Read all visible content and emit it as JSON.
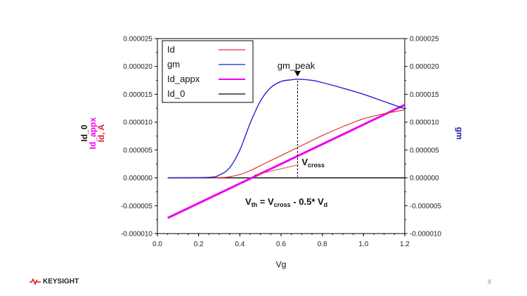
{
  "chart_data": {
    "type": "line",
    "xlabel": "Vg",
    "ylabel_left_lines": [
      {
        "text": "Id_0",
        "color": "#111111"
      },
      {
        "text": "Id_appx",
        "color": "#ee00ee"
      },
      {
        "text": "Id, A",
        "color": "#dd2222"
      }
    ],
    "ylabel_right": "gm",
    "ylabel_right_color": "#1a1aa8",
    "xlim": [
      0.0,
      1.2
    ],
    "ylim": [
      -1e-05,
      2.5e-05
    ],
    "y2lim": [
      -1e-05,
      2.5e-05
    ],
    "xticks": [
      0.0,
      0.2,
      0.4,
      0.6,
      0.8,
      1.0,
      1.2
    ],
    "xtick_labels": [
      "0.0",
      "0.2",
      "0.4",
      "0.6",
      "0.8",
      "1.0",
      "1.2"
    ],
    "yticks": [
      -1e-05,
      -5e-06,
      0.0,
      5e-06,
      1e-05,
      1.5e-05,
      2e-05,
      2.5e-05
    ],
    "ytick_labels": [
      "-0.000010",
      "-0.000005",
      "0.000000",
      "0.000005",
      "0.000010",
      "0.000015",
      "0.000020",
      "0.000025"
    ],
    "grid": false,
    "legend_position": "top-left",
    "series": [
      {
        "name": "Id",
        "color": "#dd3333",
        "axis": "left",
        "x": [
          0.05,
          0.3,
          0.35,
          0.4,
          0.45,
          0.5,
          0.55,
          0.6,
          0.7,
          0.8,
          0.9,
          1.0,
          1.1,
          1.2
        ],
        "y": [
          0.0,
          5e-08,
          2e-07,
          6e-07,
          1.3e-06,
          2.2e-06,
          3.1e-06,
          4e-06,
          5.8e-06,
          7.6e-06,
          9.2e-06,
          1.06e-05,
          1.15e-05,
          1.22e-05
        ]
      },
      {
        "name": "gm",
        "color": "#2222cc",
        "axis": "right",
        "x": [
          0.05,
          0.25,
          0.3,
          0.35,
          0.4,
          0.45,
          0.5,
          0.55,
          0.6,
          0.65,
          0.68,
          0.75,
          0.8,
          0.9,
          1.0,
          1.1,
          1.2
        ],
        "y": [
          0.0,
          1e-07,
          5e-07,
          1.8e-06,
          5e-06,
          9.8e-06,
          1.38e-05,
          1.62e-05,
          1.73e-05,
          1.76e-05,
          1.77e-05,
          1.75e-05,
          1.71e-05,
          1.61e-05,
          1.5e-05,
          1.37e-05,
          1.24e-05
        ]
      },
      {
        "name": "Id_appx",
        "color": "#ee00ee",
        "axis": "left",
        "x": [
          0.05,
          1.2
        ],
        "y": [
          -7.2e-06,
          1.31e-05
        ]
      },
      {
        "name": "Id_0",
        "color": "#000000",
        "axis": "left",
        "x": [
          0.05,
          1.2
        ],
        "y": [
          0.0,
          0.0
        ]
      }
    ],
    "annotations": {
      "gm_peak": {
        "label": "gm_peak",
        "x": 0.68,
        "y": 1.77e-05
      },
      "vcross": {
        "label_main": "V",
        "label_sub": "cross",
        "from": [
          0.47,
          5e-07
        ],
        "to": [
          0.7,
          2.5e-06
        ]
      },
      "equation": {
        "parts": [
          {
            "text": "V",
            "sub": false
          },
          {
            "text": "th",
            "sub": true
          },
          {
            "text": " = V",
            "sub": false
          },
          {
            "text": "cross",
            "sub": true
          },
          {
            "text": " - 0.5* V",
            "sub": false
          },
          {
            "text": "d",
            "sub": true
          }
        ]
      }
    }
  },
  "footer": {
    "brand": "KEYSIGHT",
    "page_number": "8"
  }
}
